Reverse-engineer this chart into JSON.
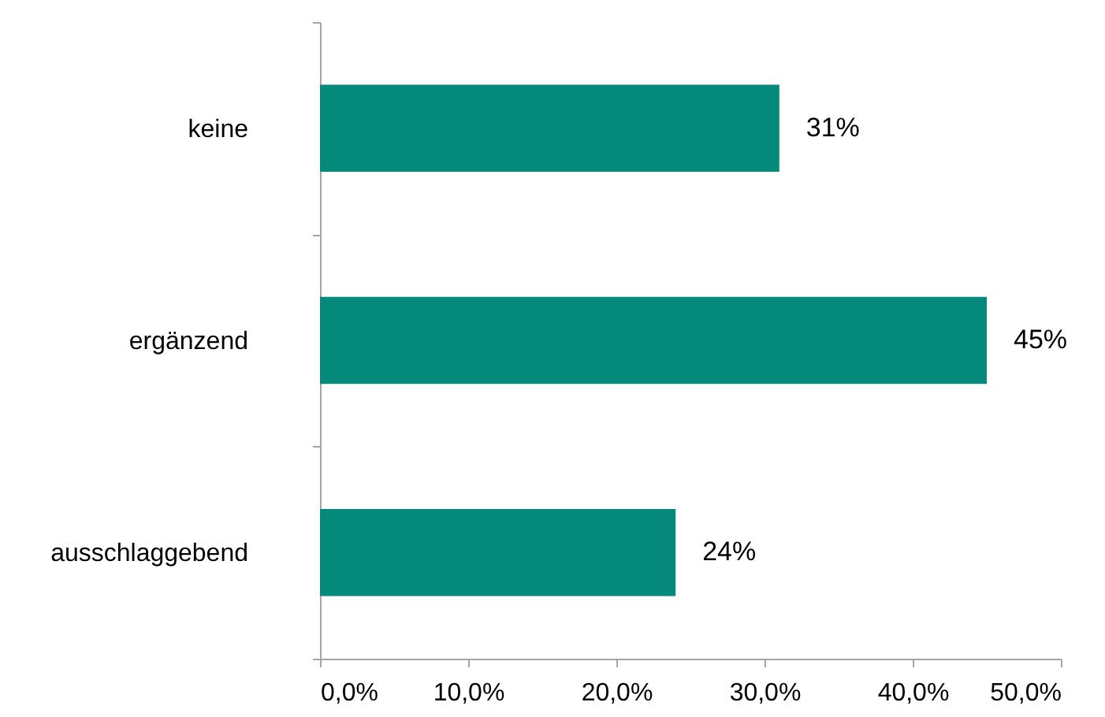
{
  "chart_data": {
    "type": "bar",
    "orientation": "horizontal",
    "categories": [
      "keine",
      "ergänzend",
      "ausschlaggebend"
    ],
    "values": [
      31,
      45,
      24
    ],
    "color": "#05897a",
    "value_labels": [
      "31%",
      "45%",
      "24%"
    ],
    "xlim": [
      0,
      50
    ],
    "xticks": [
      {
        "value": 0,
        "label": "0,0%"
      },
      {
        "value": 10,
        "label": "10,0%"
      },
      {
        "value": 20,
        "label": "20,0%"
      },
      {
        "value": 30,
        "label": "30,0%"
      },
      {
        "value": 40,
        "label": "40,0%"
      },
      {
        "value": 50,
        "label": "50,0%"
      }
    ]
  }
}
